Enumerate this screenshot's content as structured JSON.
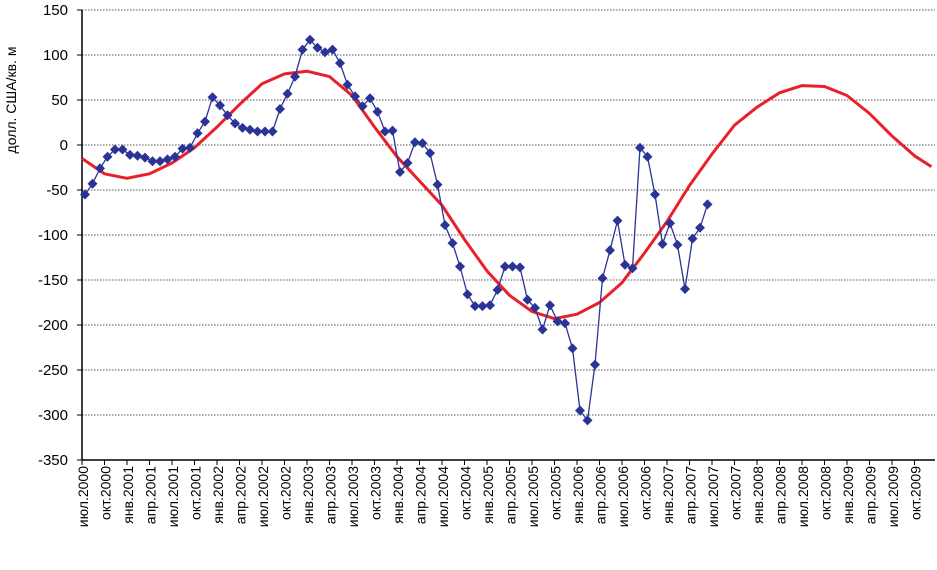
{
  "chart_data": {
    "type": "line",
    "title": "",
    "ylabel": "долл. США/кв. м",
    "xlabel": "",
    "ylim": [
      -350,
      150
    ],
    "yticks": [
      150,
      100,
      50,
      0,
      -50,
      -100,
      -150,
      -200,
      -250,
      -300,
      -350
    ],
    "grid": true,
    "legend": "none",
    "x_tick_labels": [
      "июл.2000",
      "окт.2000",
      "янв.2001",
      "апр.2001",
      "июл.2001",
      "окт.2001",
      "янв.2002",
      "апр.2002",
      "июл.2002",
      "окт.2002",
      "янв.2003",
      "апр.2003",
      "июл.2003",
      "окт.2003",
      "янв.2004",
      "апр.2004",
      "июл.2004",
      "окт.2004",
      "янв.2005",
      "апр.2005",
      "июл.2005",
      "окт.2005",
      "янв.2006",
      "апр.2006",
      "июл.2006",
      "окт.2006",
      "янв.2007",
      "апр.2007",
      "июл.2007",
      "окт.2007",
      "янв.2008",
      "апр.2008",
      "июл.2008",
      "окт.2008",
      "янв.2009",
      "апр.2009",
      "июл.2009",
      "окт.2009"
    ],
    "series": [
      {
        "name": "monthly",
        "color": "#2b3496",
        "x_unit": "months since июл.2000",
        "start_month": 0.4,
        "values": [
          -55,
          -43,
          -26,
          -13,
          -5,
          -5,
          -11,
          -12,
          -14,
          -18,
          -18,
          -16,
          -13,
          -4,
          -3,
          13,
          26,
          53,
          44,
          33,
          24,
          19,
          17,
          15,
          15,
          15,
          40,
          57,
          76,
          106,
          117,
          108,
          103,
          106,
          91,
          67,
          54,
          43,
          52,
          37,
          15,
          16,
          -30,
          -20,
          3,
          2,
          -9,
          -44,
          -89,
          -109,
          -135,
          -166,
          -179,
          -179,
          -178,
          -161,
          -135,
          -135,
          -136,
          -172,
          -181,
          -205,
          -178,
          -196,
          -198,
          -226,
          -295,
          -306,
          -244,
          -148,
          -117,
          -84,
          -133,
          -137,
          -3,
          -13,
          -55,
          -110,
          -87,
          -111,
          -160,
          -104,
          -92,
          -66
        ]
      },
      {
        "name": "trend",
        "color": "#e8202a",
        "x_unit": "quarters since июл.2000",
        "x": [
          0,
          1,
          2,
          3,
          4,
          5,
          6,
          7,
          8,
          9,
          10,
          11,
          12,
          13,
          14,
          15,
          16,
          17,
          18,
          19,
          20,
          21,
          22,
          23,
          24,
          25,
          26,
          27,
          28,
          29,
          30,
          31,
          32,
          33,
          34,
          35,
          36,
          37,
          37.75
        ],
        "values": [
          -15,
          -32,
          -37,
          -32,
          -20,
          -3,
          20,
          45,
          68,
          79,
          82,
          76,
          55,
          20,
          -13,
          -40,
          -67,
          -105,
          -140,
          -167,
          -185,
          -193,
          -188,
          -175,
          -153,
          -120,
          -85,
          -45,
          -10,
          22,
          42,
          58,
          66,
          65,
          55,
          35,
          10,
          -12,
          -24
        ]
      }
    ]
  }
}
